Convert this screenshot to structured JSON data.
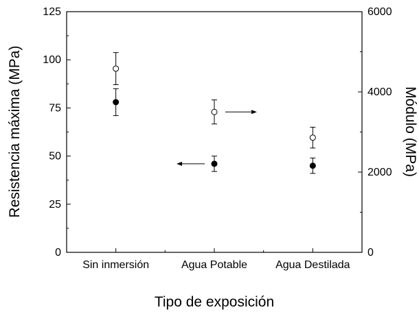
{
  "chart_data": {
    "type": "scatter",
    "xlabel": "Tipo de exposición",
    "ylabel": "Resistencia máxima (MPa)",
    "y2label": "Módulo (MPa)",
    "categories": [
      "Sin inmersión",
      "Agua Potable",
      "Agua Destilada"
    ],
    "ylim": [
      0,
      125
    ],
    "y2lim": [
      0,
      6000
    ],
    "yticks": [
      "0",
      "25",
      "50",
      "75",
      "100",
      "125"
    ],
    "y2ticks": [
      "0",
      "2000",
      "4000",
      "6000"
    ],
    "grid": false,
    "legend": "none",
    "series": [
      {
        "axis": "left",
        "marker": "filled-circle",
        "values": [
          78,
          46,
          45
        ],
        "error": [
          7,
          4,
          4
        ]
      },
      {
        "axis": "right",
        "marker": "open-circle",
        "values": [
          4580,
          3500,
          2860
        ],
        "error": [
          400,
          300,
          260
        ]
      }
    ],
    "annotations": [
      {
        "type": "arrow",
        "direction": "right",
        "series": "right-axis",
        "category": "Agua Potable"
      },
      {
        "type": "arrow",
        "direction": "left",
        "series": "left-axis",
        "category": "Agua Potable"
      }
    ]
  }
}
